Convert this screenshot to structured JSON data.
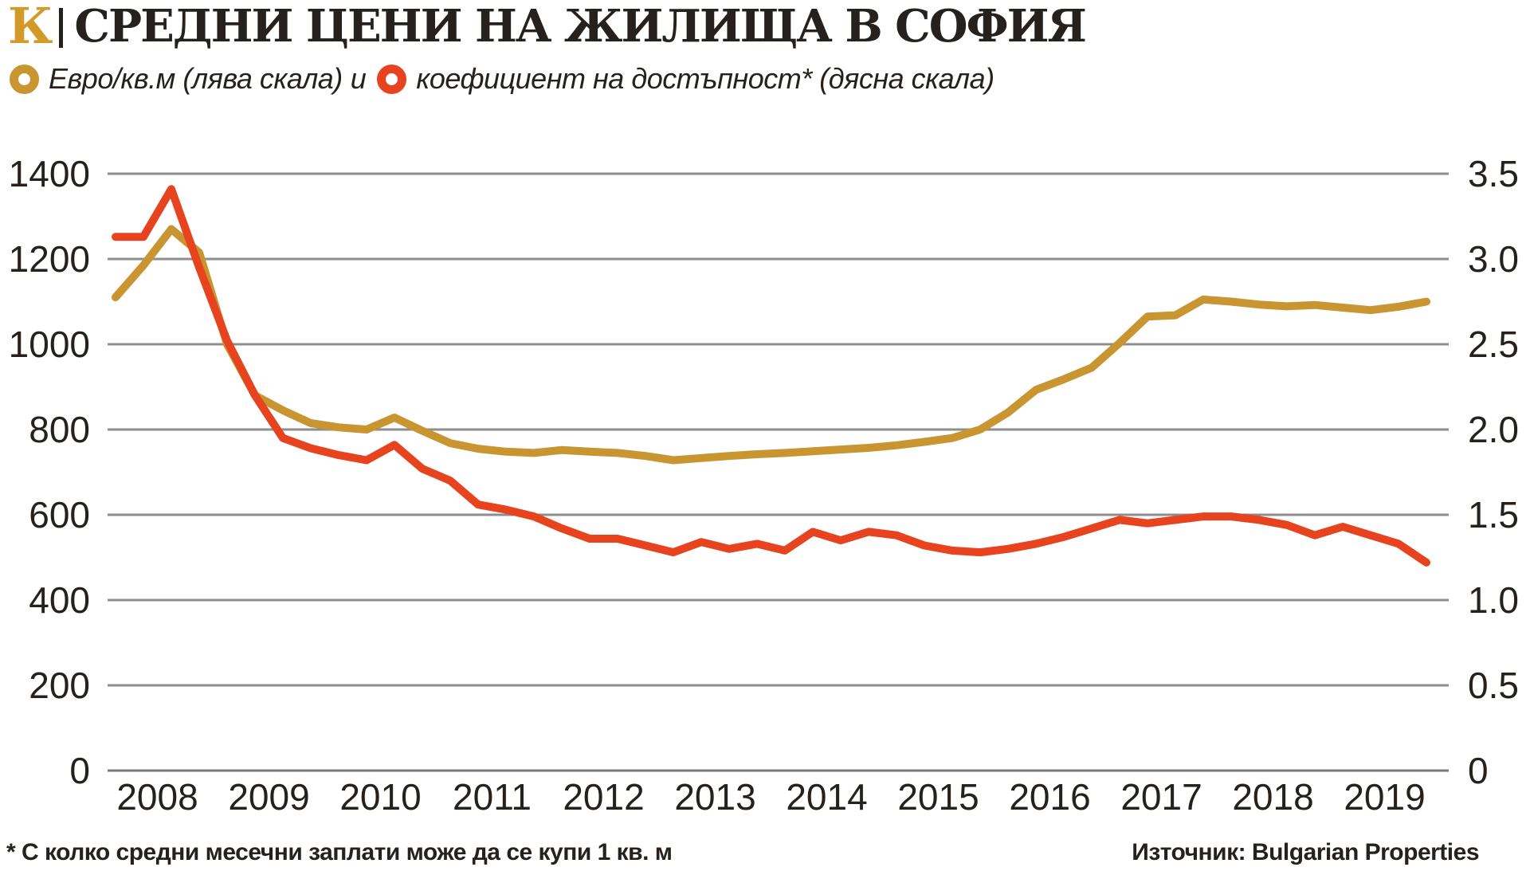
{
  "header": {
    "logo_letter": "К",
    "title": "СРЕДНИ ЦЕНИ НА ЖИЛИЩА В СОФИЯ"
  },
  "legend": {
    "series1_label": "Евро/кв.м (лява скала)",
    "connector": "и",
    "series2_label": "коефициент на достъпност* (дясна скала)"
  },
  "footer": {
    "footnote": "* С колко средни месечни заплати може да се купи 1 кв. м",
    "source": "Източник: Bulgarian Properties"
  },
  "colors": {
    "gold": "#c99530",
    "red": "#e8431f",
    "grid": "#8e8e8e",
    "baseline": "#7a7a7a",
    "text": "#26211d"
  },
  "chart_data": {
    "type": "line",
    "title": "Средни цени на жилища в София",
    "x_tick_labels": [
      "2008",
      "2009",
      "2010",
      "2011",
      "2012",
      "2013",
      "2014",
      "2015",
      "2016",
      "2017",
      "2018",
      "2019"
    ],
    "points_per_year": 4,
    "grid": true,
    "left_axis": {
      "label": "Евро/кв.м",
      "range": [
        0,
        1400
      ],
      "ticks": [
        0,
        200,
        400,
        600,
        800,
        1000,
        1200,
        1400
      ],
      "tick_labels": [
        "0",
        "200",
        "400",
        "600",
        "800",
        "1000",
        "1200",
        "1400"
      ]
    },
    "right_axis": {
      "label": "коефициент на достъпност",
      "range": [
        0,
        3.5
      ],
      "ticks": [
        0,
        0.5,
        1.0,
        1.5,
        2.0,
        2.5,
        3.0,
        3.5
      ],
      "tick_labels": [
        "0",
        "0.5",
        "1.0",
        "1.5",
        "2.0",
        "2.5",
        "3.0",
        "3.5"
      ]
    },
    "series": [
      {
        "name": "Евро/кв.м (лява скала)",
        "axis": "left",
        "color": "#c99530",
        "values": [
          1110,
          1185,
          1270,
          1215,
          1000,
          880,
          845,
          815,
          805,
          800,
          828,
          797,
          768,
          755,
          748,
          745,
          752,
          748,
          745,
          738,
          728,
          733,
          738,
          742,
          745,
          749,
          753,
          757,
          763,
          771,
          780,
          800,
          840,
          893,
          918,
          945,
          1003,
          1065,
          1068,
          1105,
          1100,
          1093,
          1089,
          1092,
          1086,
          1080,
          1088,
          1100
        ]
      },
      {
        "name": "коефициент на достъпност (дясна скала)",
        "axis": "right",
        "color": "#e8431f",
        "values": [
          3.13,
          3.13,
          3.41,
          2.95,
          2.52,
          2.2,
          1.95,
          1.89,
          1.85,
          1.82,
          1.91,
          1.77,
          1.7,
          1.56,
          1.53,
          1.49,
          1.42,
          1.36,
          1.36,
          1.32,
          1.28,
          1.34,
          1.3,
          1.33,
          1.29,
          1.4,
          1.35,
          1.4,
          1.38,
          1.32,
          1.29,
          1.28,
          1.3,
          1.33,
          1.37,
          1.42,
          1.47,
          1.45,
          1.47,
          1.49,
          1.49,
          1.47,
          1.44,
          1.38,
          1.43,
          1.38,
          1.33,
          1.22
        ]
      }
    ]
  }
}
